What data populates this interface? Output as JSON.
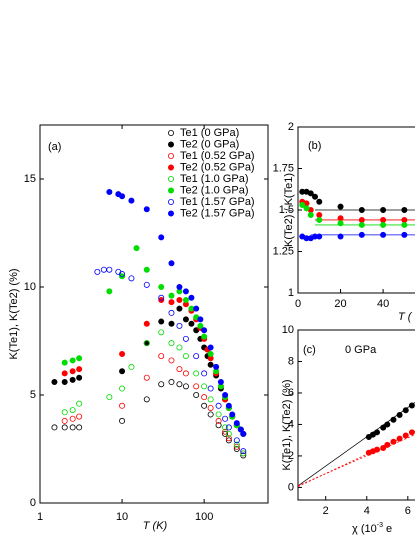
{
  "chart_data": [
    {
      "type": "scatter",
      "panel_label": "(a)",
      "xlabel": "T (K)",
      "ylabel": "K(Te1), K(Te2) (%)",
      "xscale": "log",
      "xlim": [
        1,
        600
      ],
      "ylim": [
        0,
        17.5
      ],
      "xticks": [
        1,
        10,
        100
      ],
      "yticks": [
        0,
        5,
        10,
        15
      ],
      "legend": "upper right",
      "series": [
        {
          "name": "Te1 (0 GPa)",
          "color": "#000000",
          "marker": "open",
          "x": [
            1.5,
            2,
            2.5,
            3,
            10,
            20,
            30,
            40,
            50,
            60,
            80,
            100,
            120,
            150,
            180,
            200,
            250,
            300
          ],
          "values": [
            3.5,
            3.5,
            3.5,
            3.5,
            3.8,
            4.8,
            5.5,
            5.6,
            5.5,
            5.4,
            5.0,
            4.5,
            4.1,
            3.6,
            3.2,
            2.9,
            2.5,
            2.2
          ]
        },
        {
          "name": "Te2 (0 GPa)",
          "color": "#000000",
          "marker": "filled",
          "x": [
            1.5,
            2,
            2.5,
            3,
            10,
            20,
            30,
            40,
            50,
            60,
            70,
            80,
            90,
            100,
            110,
            120,
            140,
            160,
            180,
            200,
            220,
            250,
            280,
            300
          ],
          "values": [
            5.6,
            5.6,
            5.7,
            5.8,
            6.1,
            7.4,
            8.4,
            8.3,
            9.0,
            8.5,
            8.3,
            8.0,
            7.6,
            7.2,
            6.8,
            6.4,
            5.9,
            5.3,
            4.8,
            4.4,
            4.0,
            3.6,
            3.4,
            3.2
          ]
        },
        {
          "name": "Te1 (0.52 GPa)",
          "color": "#ff0000",
          "marker": "open",
          "x": [
            2,
            2.5,
            3,
            10,
            20,
            30,
            40,
            50,
            60,
            80,
            100,
            120,
            150,
            180,
            200,
            250,
            300
          ],
          "values": [
            3.8,
            3.9,
            4.0,
            4.5,
            5.8,
            6.8,
            6.6,
            6.2,
            6.0,
            5.4,
            4.9,
            4.4,
            3.8,
            3.3,
            3.0,
            2.6,
            2.3
          ]
        },
        {
          "name": "Te2 (0.52 GPa)",
          "color": "#ff0000",
          "marker": "filled",
          "x": [
            2,
            2.5,
            3,
            10,
            20,
            30,
            40,
            50,
            60,
            70,
            80,
            90,
            100,
            110,
            120,
            140,
            160,
            180,
            200,
            220,
            250,
            280,
            300
          ],
          "values": [
            6.0,
            6.1,
            6.2,
            6.9,
            8.3,
            9.4,
            9.3,
            9.4,
            9.2,
            8.9,
            8.5,
            8.1,
            7.6,
            7.1,
            6.7,
            6.0,
            5.4,
            4.8,
            4.4,
            4.0,
            3.6,
            3.4,
            3.2
          ]
        },
        {
          "name": "Te1 (1.0 GPa)",
          "color": "#00dd00",
          "marker": "open",
          "x": [
            2,
            2.5,
            3,
            7,
            10,
            13,
            20,
            30,
            40,
            50,
            60,
            80,
            100,
            120,
            150,
            180,
            200,
            250,
            300
          ],
          "values": [
            4.2,
            4.3,
            4.6,
            4.9,
            5.3,
            6.3,
            7.4,
            7.9,
            7.4,
            7.2,
            6.8,
            6.0,
            5.4,
            4.8,
            4.1,
            3.5,
            3.2,
            2.7,
            2.3
          ]
        },
        {
          "name": "Te2 (1.0 GPa)",
          "color": "#00dd00",
          "marker": "filled",
          "x": [
            2,
            2.5,
            3,
            7,
            10,
            15,
            20,
            30,
            40,
            50,
            60,
            70,
            80,
            90,
            100,
            120,
            140,
            160,
            180,
            200,
            220,
            250,
            280,
            300
          ],
          "values": [
            6.5,
            6.6,
            6.7,
            9.8,
            10.5,
            11.8,
            10.8,
            10.0,
            9.6,
            9.8,
            9.4,
            9.0,
            8.6,
            8.2,
            7.7,
            6.9,
            6.1,
            5.4,
            4.9,
            4.4,
            4.0,
            3.6,
            3.4,
            3.2
          ]
        },
        {
          "name": "Te1 (1.57 GPa)",
          "color": "#0000ff",
          "marker": "open",
          "x": [
            5,
            6,
            7,
            9,
            10,
            13,
            20,
            30,
            40,
            50,
            60,
            80,
            100,
            120,
            150,
            180,
            200,
            250,
            300
          ],
          "values": [
            10.7,
            10.8,
            10.8,
            10.7,
            10.6,
            10.4,
            10.1,
            9.5,
            8.8,
            8.2,
            7.6,
            6.8,
            6.0,
            5.3,
            4.5,
            3.9,
            3.5,
            2.9,
            2.4
          ]
        },
        {
          "name": "Te2 (1.57 GPa)",
          "color": "#0000ff",
          "marker": "filled",
          "x": [
            7,
            9,
            10,
            13,
            20,
            30,
            40,
            50,
            60,
            70,
            80,
            90,
            100,
            120,
            140,
            160,
            180,
            200,
            220,
            250,
            280,
            300
          ],
          "values": [
            14.4,
            14.3,
            14.2,
            14.0,
            13.6,
            12.3,
            11.1,
            10.0,
            9.8,
            9.5,
            9.0,
            8.5,
            8.0,
            7.2,
            6.3,
            5.6,
            5.0,
            4.5,
            4.1,
            3.7,
            3.4,
            3.2
          ]
        }
      ]
    },
    {
      "type": "scatter",
      "panel_label": "(b)",
      "xlabel": "T (",
      "ylabel": "K(Te2) / K(Te1)",
      "xlim": [
        0,
        55
      ],
      "ylim": [
        1,
        2
      ],
      "xticks": [
        0,
        20,
        40
      ],
      "yticks": [
        1,
        1.25,
        1.5,
        1.75,
        2
      ],
      "series": [
        {
          "color": "#000000",
          "marker": "filled",
          "x": [
            2,
            4,
            6,
            8,
            10,
            20,
            30,
            40,
            50
          ],
          "values": [
            1.61,
            1.61,
            1.6,
            1.58,
            1.55,
            1.52,
            1.5,
            1.5,
            1.5
          ]
        },
        {
          "color": "#ff0000",
          "marker": "filled",
          "x": [
            2,
            4,
            6,
            10,
            20,
            30,
            40,
            50
          ],
          "values": [
            1.55,
            1.54,
            1.5,
            1.47,
            1.45,
            1.44,
            1.44,
            1.44
          ]
        },
        {
          "color": "#00dd00",
          "marker": "filled",
          "x": [
            2,
            4,
            6,
            10,
            20,
            30,
            40,
            50
          ],
          "values": [
            1.53,
            1.51,
            1.47,
            1.44,
            1.42,
            1.41,
            1.41,
            1.41
          ]
        },
        {
          "color": "#0000ff",
          "marker": "filled",
          "x": [
            2,
            4,
            6,
            8,
            10,
            20,
            30,
            40,
            50
          ],
          "values": [
            1.34,
            1.33,
            1.33,
            1.34,
            1.34,
            1.34,
            1.35,
            1.35,
            1.35
          ]
        }
      ],
      "lines": [
        {
          "color": "#000000",
          "x": [
            8,
            55
          ],
          "values": [
            1.5,
            1.5
          ]
        },
        {
          "color": "#ff0000",
          "x": [
            8,
            55
          ],
          "values": [
            1.44,
            1.44
          ]
        },
        {
          "color": "#00dd00",
          "x": [
            8,
            55
          ],
          "values": [
            1.41,
            1.41
          ]
        },
        {
          "color": "#0000ff",
          "x": [
            6,
            55
          ],
          "values": [
            1.35,
            1.35
          ]
        }
      ]
    },
    {
      "type": "scatter",
      "panel_label": "(c)",
      "annotation": "0 GPa",
      "xlabel": {
        "text": "χ  (10",
        "sup": "-3",
        "rest": " e"
      },
      "ylabel": "K(Te1), K(Te2) (%)",
      "xlim": [
        0.65,
        6.35
      ],
      "ylim": [
        -0.8,
        10
      ],
      "xticks": [
        2,
        4,
        6
      ],
      "yticks": [
        0,
        2,
        4,
        6,
        8,
        10
      ],
      "series": [
        {
          "color": "#000000",
          "marker": "filled",
          "x": [
            4.1,
            4.3,
            4.5,
            4.8,
            5.0,
            5.3,
            5.6,
            5.9,
            6.2
          ],
          "values": [
            3.2,
            3.35,
            3.5,
            3.8,
            4.0,
            4.3,
            4.6,
            4.9,
            5.2
          ]
        },
        {
          "color": "#ff0000",
          "marker": "filled",
          "x": [
            4.1,
            4.3,
            4.5,
            4.8,
            5.0,
            5.3,
            5.6,
            5.9,
            6.2
          ],
          "values": [
            2.2,
            2.3,
            2.4,
            2.5,
            2.7,
            2.9,
            3.1,
            3.3,
            3.5
          ]
        }
      ],
      "lines": [
        {
          "color": "#000000",
          "x": [
            0.65,
            6.35
          ],
          "values": [
            0.1,
            5.4
          ]
        },
        {
          "color": "#ff0000",
          "dash": true,
          "x": [
            0.65,
            6.35
          ],
          "values": [
            0.05,
            3.55
          ]
        },
        {
          "color": "#ff0000",
          "dash": true,
          "x": [
            0.65,
            6.35
          ],
          "values": [
            0.1,
            3.35
          ]
        }
      ]
    }
  ]
}
